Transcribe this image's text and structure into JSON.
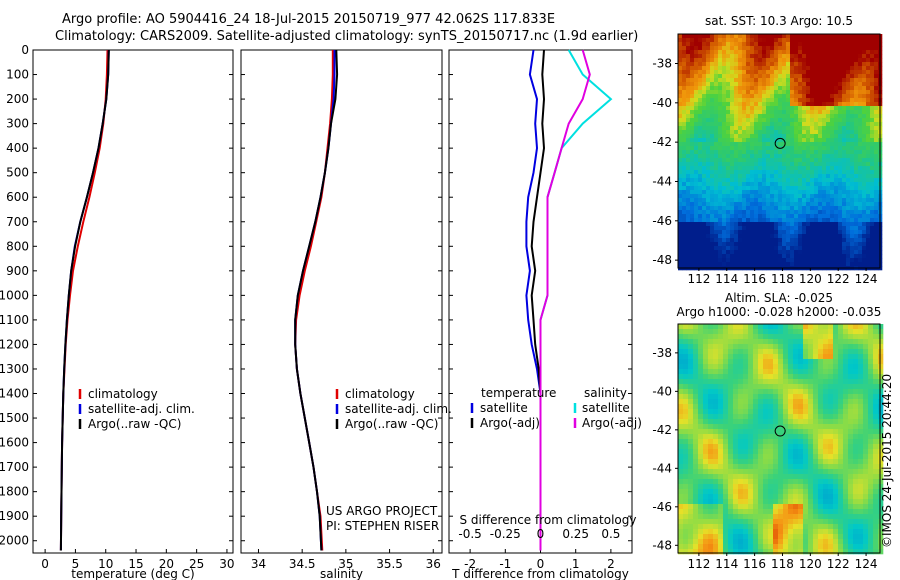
{
  "header": {
    "line1": "Argo profile: AO 5904416_24 18-Jul-2015 20150719_977 42.062S 117.833E",
    "line2": "Climatology: CARS2009. Satellite-adjusted climatology: synTS_20150717.nc (1.9d earlier)"
  },
  "colors": {
    "clim": "#e00000",
    "sat": "#0000e0",
    "argo": "#000000",
    "sal_sat": "#00e0e0",
    "sal_argo": "#e000e0"
  },
  "chart_data": [
    {
      "type": "line",
      "xlabel": "temperature (deg C)",
      "xlim": [
        -2,
        31
      ],
      "ylim": [
        2050,
        0
      ],
      "xticks": [
        0,
        5,
        10,
        15,
        20,
        25,
        30
      ],
      "yticks": [
        0,
        100,
        200,
        300,
        400,
        500,
        600,
        700,
        800,
        900,
        1000,
        1100,
        1200,
        1300,
        1400,
        1500,
        1600,
        1700,
        1800,
        1900,
        2000
      ],
      "legend": [
        "climatology",
        "satellite-adj. clim.",
        "Argo(..raw -QC)"
      ],
      "series": [
        {
          "name": "climatology",
          "color": "#e00000",
          "x": [
            10.3,
            10.2,
            10.0,
            9.6,
            9.0,
            8.2,
            7.3,
            6.3,
            5.4,
            4.6,
            4.1,
            3.7,
            3.4,
            3.2,
            3.0,
            2.9,
            2.8,
            2.75,
            2.7,
            2.65,
            2.6
          ],
          "y": [
            0,
            100,
            200,
            300,
            400,
            500,
            600,
            700,
            800,
            900,
            1000,
            1100,
            1200,
            1300,
            1400,
            1500,
            1600,
            1700,
            1800,
            1900,
            2040
          ]
        },
        {
          "name": "satellite-adj. clim.",
          "color": "#0000e0",
          "x": [
            10.5,
            10.4,
            10.1,
            9.5,
            8.8,
            7.9,
            6.9,
            5.8,
            4.9,
            4.3,
            3.9,
            3.6,
            3.35,
            3.15,
            3.0,
            2.9,
            2.8,
            2.75,
            2.7,
            2.65,
            2.6
          ],
          "y": [
            0,
            100,
            200,
            300,
            400,
            500,
            600,
            700,
            800,
            900,
            1000,
            1100,
            1200,
            1300,
            1400,
            1500,
            1600,
            1700,
            1800,
            1900,
            2040
          ]
        },
        {
          "name": "Argo(..raw -QC)",
          "color": "#000000",
          "x": [
            10.5,
            10.4,
            10.1,
            9.5,
            8.8,
            7.9,
            6.9,
            5.8,
            4.95,
            4.3,
            3.9,
            3.6,
            3.35,
            3.15,
            3.0,
            2.9,
            2.8,
            2.75,
            2.7,
            2.65,
            2.6
          ],
          "y": [
            0,
            100,
            200,
            300,
            400,
            500,
            600,
            700,
            800,
            900,
            1000,
            1100,
            1200,
            1300,
            1400,
            1500,
            1600,
            1700,
            1800,
            1900,
            2040
          ]
        }
      ]
    },
    {
      "type": "line",
      "xlabel": "salinity",
      "xlim": [
        33.8,
        36.1
      ],
      "ylim": [
        2050,
        0
      ],
      "xticks": [
        34,
        34.5,
        35,
        35.5,
        36
      ],
      "legend": [
        "climatology",
        "satellite-adj. clim.",
        "Argo(..raw -QC)"
      ],
      "annotation": [
        "US ARGO PROJECT",
        "PI: STEPHEN RISER"
      ],
      "series": [
        {
          "name": "climatology",
          "color": "#e00000",
          "x": [
            34.85,
            34.85,
            34.84,
            34.82,
            34.79,
            34.76,
            34.72,
            34.66,
            34.6,
            34.53,
            34.47,
            34.43,
            34.42,
            34.44,
            34.48,
            34.53,
            34.58,
            34.63,
            34.67,
            34.71,
            34.73
          ],
          "y": [
            0,
            100,
            200,
            300,
            400,
            500,
            600,
            700,
            800,
            900,
            1000,
            1100,
            1200,
            1300,
            1400,
            1500,
            1600,
            1700,
            1800,
            1900,
            2040
          ]
        },
        {
          "name": "satellite-adj. clim.",
          "color": "#0000e0",
          "x": [
            34.87,
            34.87,
            34.86,
            34.83,
            34.8,
            34.76,
            34.71,
            34.65,
            34.58,
            34.51,
            34.45,
            34.42,
            34.42,
            34.44,
            34.48,
            34.53,
            34.58,
            34.63,
            34.67,
            34.7,
            34.72
          ],
          "y": [
            0,
            100,
            200,
            300,
            400,
            500,
            600,
            700,
            800,
            900,
            1000,
            1100,
            1200,
            1300,
            1400,
            1500,
            1600,
            1700,
            1800,
            1900,
            2040
          ]
        },
        {
          "name": "Argo(..raw -QC)",
          "color": "#000000",
          "x": [
            34.89,
            34.9,
            34.88,
            34.83,
            34.8,
            34.76,
            34.71,
            34.65,
            34.58,
            34.51,
            34.45,
            34.42,
            34.42,
            34.44,
            34.48,
            34.53,
            34.58,
            34.63,
            34.67,
            34.7,
            34.72
          ],
          "y": [
            0,
            100,
            200,
            300,
            400,
            500,
            600,
            700,
            800,
            900,
            1000,
            1100,
            1200,
            1300,
            1400,
            1500,
            1600,
            1700,
            1800,
            1900,
            2040
          ]
        }
      ]
    },
    {
      "type": "line",
      "xlabel": "T difference from climatology",
      "xlabel_top": "S difference from climatology",
      "xlim": [
        -2.6,
        2.6
      ],
      "ylim": [
        2050,
        0
      ],
      "xticks": [
        -2,
        -1,
        0,
        1,
        2
      ],
      "xticks_top": [
        -0.5,
        -0.25,
        0,
        0.25,
        0.5
      ],
      "legend_temperature": [
        "temperature",
        "satellite",
        "Argo(-adj)"
      ],
      "legend_salinity": [
        "salinity",
        "satellite",
        "Argo(-adj)"
      ],
      "series": [
        {
          "name": "temperature satellite",
          "color": "#0000e0",
          "x": [
            -0.2,
            -0.3,
            -0.1,
            -0.15,
            -0.1,
            -0.2,
            -0.35,
            -0.4,
            -0.4,
            -0.3,
            -0.4,
            -0.35,
            -0.25,
            -0.1,
            0,
            0,
            0,
            0,
            0,
            0,
            0
          ],
          "y": [
            0,
            100,
            200,
            300,
            400,
            500,
            600,
            700,
            800,
            900,
            1000,
            1100,
            1200,
            1300,
            1400,
            1500,
            1600,
            1700,
            1800,
            1900,
            2040
          ]
        },
        {
          "name": "temperature Argo(-adj)",
          "color": "#000000",
          "x": [
            0.1,
            0.05,
            0.1,
            0.05,
            0.1,
            0.0,
            -0.1,
            -0.2,
            -0.25,
            -0.15,
            -0.25,
            -0.2,
            -0.15,
            -0.05,
            0,
            0,
            0,
            0,
            0,
            0,
            0
          ],
          "y": [
            0,
            100,
            200,
            300,
            400,
            500,
            600,
            700,
            800,
            900,
            1000,
            1100,
            1200,
            1300,
            1400,
            1500,
            1600,
            1700,
            1800,
            1900,
            2040
          ]
        },
        {
          "name": "salinity satellite",
          "color": "#00e0e0",
          "x": [
            0.2,
            0.3,
            0.5,
            0.3,
            0.15,
            0.1,
            0.05,
            0.05,
            0.05,
            0.05,
            0.05,
            0.0,
            0.0,
            0.0,
            0.0,
            0.0,
            0.0,
            0.0,
            0.0,
            0.0,
            0.0
          ],
          "y": [
            0,
            100,
            200,
            300,
            400,
            500,
            600,
            700,
            800,
            900,
            1000,
            1100,
            1200,
            1300,
            1400,
            1500,
            1600,
            1700,
            1800,
            1900,
            2040
          ]
        },
        {
          "name": "salinity Argo(-adj)",
          "color": "#e000e0",
          "x": [
            0.3,
            0.35,
            0.3,
            0.2,
            0.15,
            0.1,
            0.05,
            0.05,
            0.05,
            0.05,
            0.05,
            0.0,
            0.0,
            0.0,
            0.0,
            0.0,
            0.0,
            0.0,
            0.0,
            0.0,
            0.0
          ],
          "y": [
            0,
            100,
            200,
            300,
            400,
            500,
            600,
            700,
            800,
            900,
            1000,
            1100,
            1200,
            1300,
            1400,
            1500,
            1600,
            1700,
            1800,
            1900,
            2040
          ]
        }
      ]
    },
    {
      "type": "heatmap",
      "title": "sat. SST: 10.3 Argo: 10.5",
      "xlim": [
        110.5,
        125
      ],
      "ylim": [
        -48.4,
        -36.5
      ],
      "xticks": [
        112,
        114,
        116,
        118,
        120,
        122,
        124
      ],
      "yticks": [
        -38,
        -40,
        -42,
        -44,
        -46,
        -48
      ],
      "marker": {
        "lon": 117.833,
        "lat": -42.062
      }
    },
    {
      "type": "heatmap",
      "title_lines": [
        "Altim. SLA: -0.025",
        "Argo h1000: -0.028 h2000: -0.035"
      ],
      "xlim": [
        110.5,
        125
      ],
      "ylim": [
        -48.4,
        -36.5
      ],
      "xticks": [
        112,
        114,
        116,
        118,
        120,
        122,
        124
      ],
      "yticks": [
        -38,
        -40,
        -42,
        -44,
        -46,
        -48
      ],
      "marker": {
        "lon": 117.833,
        "lat": -42.062
      }
    }
  ],
  "stamp": "©IMOS 24-Jul-2015 20:44:20"
}
